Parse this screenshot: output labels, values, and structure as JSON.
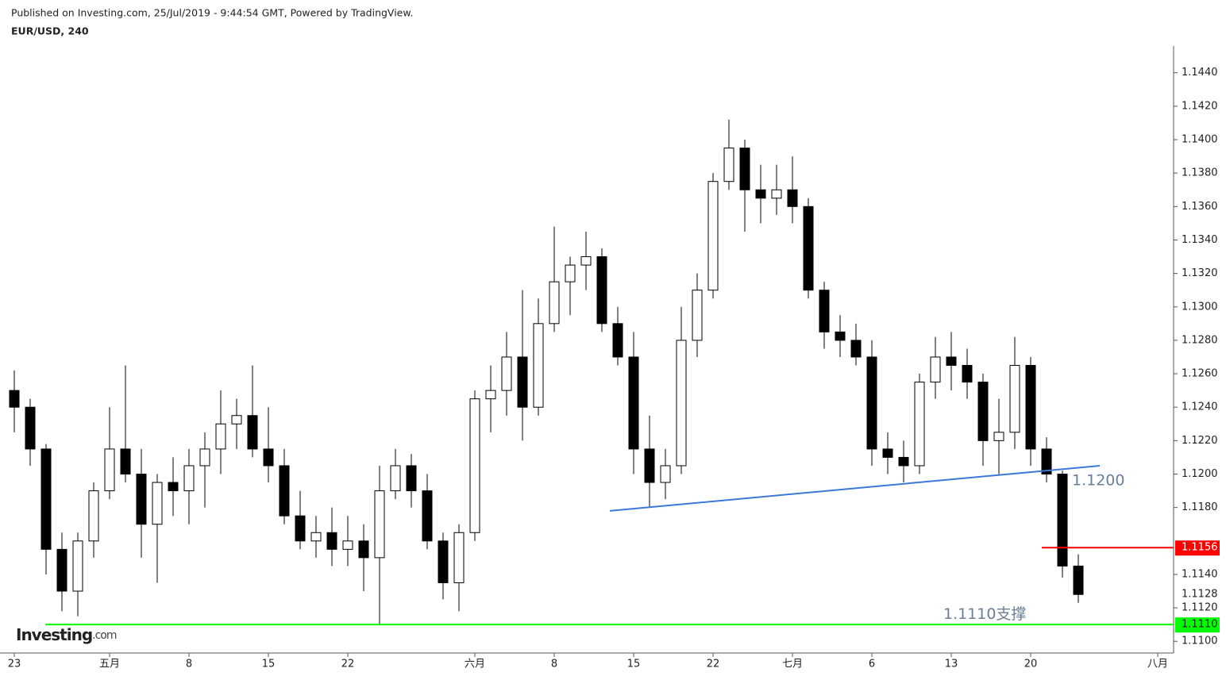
{
  "header": {
    "published": "Published on Investing.com, 25/Jul/2019 - 9:44:54 GMT, Powered by TradingView.",
    "symbol": "EUR/USD, 240"
  },
  "logo": {
    "main": "Investing",
    "suffix": ".com"
  },
  "chart_data": {
    "type": "candlestick",
    "categories": [
      "23",
      null,
      null,
      null,
      null,
      null,
      "五月",
      null,
      null,
      null,
      null,
      "8",
      null,
      null,
      null,
      null,
      "15",
      null,
      null,
      null,
      null,
      "22",
      null,
      null,
      null,
      null,
      null,
      null,
      null,
      "六月",
      null,
      null,
      null,
      null,
      "8",
      null,
      null,
      null,
      null,
      "15",
      null,
      null,
      null,
      null,
      "22",
      null,
      null,
      null,
      null,
      "七月",
      null,
      null,
      null,
      null,
      "6",
      null,
      null,
      null,
      null,
      "13",
      null,
      null,
      null,
      null,
      "20",
      null,
      null,
      null,
      null,
      null,
      null,
      null,
      "八月"
    ],
    "open": [
      1.125,
      1.124,
      1.1215,
      1.1155,
      1.113,
      1.116,
      1.119,
      1.1215,
      1.12,
      1.117,
      1.1195,
      1.119,
      1.1205,
      1.1215,
      1.123,
      1.1235,
      1.1215,
      1.1205,
      1.1175,
      1.116,
      1.1165,
      1.1155,
      1.116,
      1.115,
      1.119,
      1.1205,
      1.119,
      1.116,
      1.1135,
      1.1165,
      1.1245,
      1.125,
      1.127,
      1.124,
      1.129,
      1.1315,
      1.1325,
      1.133,
      1.129,
      1.127,
      1.1215,
      1.1195,
      1.1205,
      1.128,
      1.131,
      1.1375,
      1.1395,
      1.137,
      1.1365,
      1.137,
      1.136,
      1.131,
      1.1285,
      1.128,
      1.127,
      1.1215,
      1.121,
      1.1205,
      1.1255,
      1.127,
      1.1265,
      1.1255,
      1.122,
      1.1225,
      1.1265,
      1.1215,
      1.12,
      1.1145,
      null,
      null,
      null,
      null,
      null
    ],
    "high": [
      1.1262,
      1.1245,
      1.1218,
      1.1165,
      1.1165,
      1.1195,
      1.124,
      1.1265,
      1.1215,
      1.12,
      1.121,
      1.1215,
      1.1225,
      1.125,
      1.1245,
      1.1265,
      1.124,
      1.1215,
      1.119,
      1.1175,
      1.118,
      1.1175,
      1.117,
      1.1205,
      1.1215,
      1.1212,
      1.12,
      1.1165,
      1.117,
      1.125,
      1.1265,
      1.1285,
      1.131,
      1.1305,
      1.1348,
      1.133,
      1.1345,
      1.1335,
      1.13,
      1.1285,
      1.1235,
      1.1215,
      1.13,
      1.132,
      1.138,
      1.1412,
      1.14,
      1.1385,
      1.1385,
      1.139,
      1.1365,
      1.1315,
      1.1295,
      1.129,
      1.128,
      1.1225,
      1.122,
      1.126,
      1.1282,
      1.1285,
      1.1275,
      1.126,
      1.1245,
      1.1282,
      1.127,
      1.1222,
      1.1202,
      1.1152,
      null,
      null,
      null,
      null,
      null
    ],
    "low": [
      1.1225,
      1.1205,
      1.114,
      1.1118,
      1.1115,
      1.115,
      1.1185,
      1.1195,
      1.115,
      1.1135,
      1.1175,
      1.117,
      1.118,
      1.12,
      1.1215,
      1.121,
      1.1195,
      1.117,
      1.1155,
      1.115,
      1.1145,
      1.1145,
      1.113,
      1.111,
      1.1185,
      1.118,
      1.1155,
      1.1125,
      1.1118,
      1.116,
      1.1225,
      1.1235,
      1.122,
      1.1235,
      1.1285,
      1.1295,
      1.131,
      1.1285,
      1.1265,
      1.12,
      1.118,
      1.1185,
      1.12,
      1.127,
      1.1305,
      1.137,
      1.1345,
      1.135,
      1.1355,
      1.135,
      1.1305,
      1.1275,
      1.127,
      1.1265,
      1.1205,
      1.12,
      1.1195,
      1.12,
      1.1245,
      1.125,
      1.1245,
      1.1205,
      1.12,
      1.1215,
      1.1205,
      1.1195,
      1.1138,
      1.1123,
      null,
      null,
      null,
      null,
      null
    ],
    "close": [
      1.124,
      1.1215,
      1.1155,
      1.113,
      1.116,
      1.119,
      1.1215,
      1.12,
      1.117,
      1.1195,
      1.119,
      1.1205,
      1.1215,
      1.123,
      1.1235,
      1.1215,
      1.1205,
      1.1175,
      1.116,
      1.1165,
      1.1155,
      1.116,
      1.115,
      1.119,
      1.1205,
      1.119,
      1.116,
      1.1135,
      1.1165,
      1.1245,
      1.125,
      1.127,
      1.124,
      1.129,
      1.1315,
      1.1325,
      1.133,
      1.129,
      1.127,
      1.1215,
      1.1195,
      1.1205,
      1.128,
      1.131,
      1.1375,
      1.1395,
      1.137,
      1.1365,
      1.137,
      1.136,
      1.131,
      1.1285,
      1.128,
      1.127,
      1.1215,
      1.121,
      1.1205,
      1.1255,
      1.127,
      1.1265,
      1.1255,
      1.122,
      1.1225,
      1.1265,
      1.1215,
      1.12,
      1.1145,
      1.1128,
      null,
      null,
      null,
      null,
      null
    ],
    "ylim": [
      1.1093,
      1.1456
    ],
    "yticks": [
      {
        "value": 1.144,
        "label": "1.1440"
      },
      {
        "value": 1.142,
        "label": "1.1420"
      },
      {
        "value": 1.14,
        "label": "1.1400"
      },
      {
        "value": 1.138,
        "label": "1.1380"
      },
      {
        "value": 1.136,
        "label": "1.1360"
      },
      {
        "value": 1.134,
        "label": "1.1340"
      },
      {
        "value": 1.132,
        "label": "1.1320"
      },
      {
        "value": 1.13,
        "label": "1.1300"
      },
      {
        "value": 1.128,
        "label": "1.1280"
      },
      {
        "value": 1.126,
        "label": "1.1260"
      },
      {
        "value": 1.124,
        "label": "1.1240"
      },
      {
        "value": 1.122,
        "label": "1.1220"
      },
      {
        "value": 1.12,
        "label": "1.1200"
      },
      {
        "value": 1.118,
        "label": "1.1180"
      },
      {
        "value": 1.114,
        "label": "1.1140"
      },
      {
        "value": 1.112,
        "label": "1.1120"
      },
      {
        "value": 1.11,
        "label": "1.1100"
      }
    ],
    "price_labels": [
      {
        "value": 1.1156,
        "label": "1.1156",
        "color": "#ff0000"
      },
      {
        "value": 1.1128,
        "label": "1.1128"
      },
      {
        "value": 1.111,
        "label": "1.1110",
        "color": "#00ff00"
      }
    ],
    "trendlines": [
      {
        "x": [
          37.5,
          68.35
        ],
        "y": [
          1.1178,
          1.1205
        ],
        "color": "#3c78d8"
      }
    ],
    "hlines": [
      {
        "value": 1.1156,
        "from": 64.7,
        "color": "#ff0000"
      },
      {
        "value": 1.111,
        "from": 1.95,
        "color": "#00ff00"
      }
    ],
    "annotations": [
      {
        "text": "1.1200",
        "x": 66.6,
        "y": 1.1196
      },
      {
        "text": "1.1110支撑",
        "x": 58.5,
        "y": 1.1116
      }
    ]
  }
}
